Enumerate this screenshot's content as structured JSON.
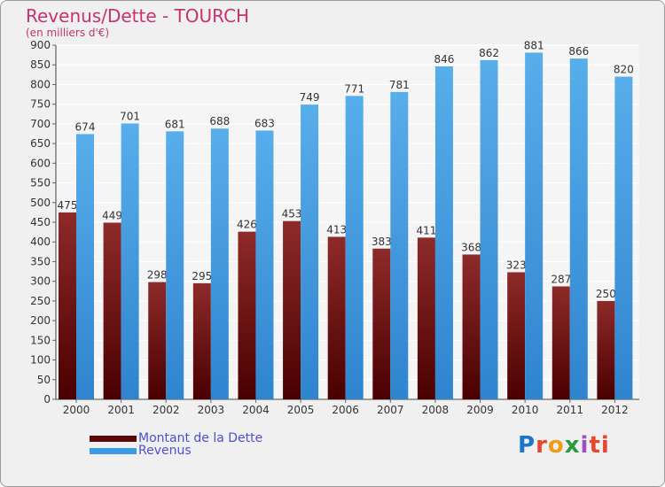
{
  "chart_data": {
    "type": "bar",
    "title": "Revenus/Dette - TOURCH",
    "subtitle": "(en milliers d'€)",
    "categories": [
      "2000",
      "2001",
      "2002",
      "2003",
      "2004",
      "2005",
      "2006",
      "2007",
      "2008",
      "2009",
      "2010",
      "2011",
      "2012"
    ],
    "series": [
      {
        "name": "Montant de la Dette",
        "color": "#6b0d0d",
        "values": [
          475,
          449,
          298,
          295,
          426,
          453,
          413,
          383,
          411,
          368,
          323,
          287,
          250
        ]
      },
      {
        "name": "Revenus",
        "color": "#3c9be4",
        "values": [
          674,
          701,
          681,
          688,
          683,
          749,
          771,
          781,
          846,
          862,
          881,
          866,
          820
        ]
      }
    ],
    "ylim": [
      0,
      900
    ],
    "ytick_step": 50,
    "grid": true,
    "legend_position": "bottom-left"
  },
  "logo": {
    "text": "Proxiti"
  }
}
